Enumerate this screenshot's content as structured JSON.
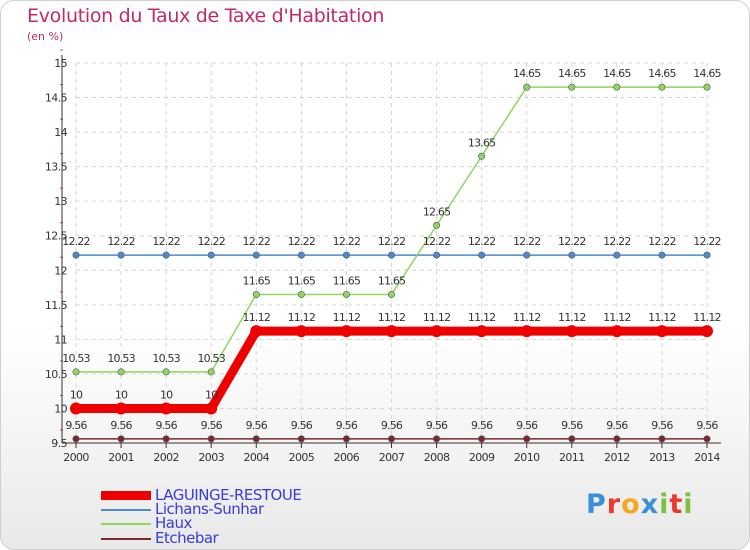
{
  "title": "Evolution du Taux de Taxe d'Habitation",
  "unit": "(en %)",
  "chart_data": {
    "type": "line",
    "x": [
      "2000",
      "2001",
      "2002",
      "2003",
      "2004",
      "2005",
      "2006",
      "2007",
      "2008",
      "2009",
      "2010",
      "2011",
      "2012",
      "2013",
      "2014"
    ],
    "ylim": [
      9.5,
      15
    ],
    "yticks": [
      "9.5",
      "10",
      "10.5",
      "11",
      "11.5",
      "12",
      "12.5",
      "13",
      "13.5",
      "14",
      "14.5",
      "15"
    ],
    "grid": true,
    "legend_position": "bottom-left",
    "series": [
      {
        "name": "LAGUINGE-RESTOUE",
        "color": "#ee0000",
        "width": 9,
        "values": [
          10,
          10,
          10,
          10,
          11.12,
          11.12,
          11.12,
          11.12,
          11.12,
          11.12,
          11.12,
          11.12,
          11.12,
          11.12,
          11.12
        ],
        "labels": [
          "10",
          "10",
          "10",
          "10",
          "11.12",
          "11.12",
          "11.12",
          "11.12",
          "11.12",
          "11.12",
          "11.12",
          "11.12",
          "11.12",
          "11.12",
          "11.12"
        ]
      },
      {
        "name": "Lichans-Sunhar",
        "color": "#4c8cc9",
        "width": 1.5,
        "values": [
          12.22,
          12.22,
          12.22,
          12.22,
          12.22,
          12.22,
          12.22,
          12.22,
          12.22,
          12.22,
          12.22,
          12.22,
          12.22,
          12.22,
          12.22
        ],
        "labels": [
          "12.22",
          "12.22",
          "12.22",
          "12.22",
          "12.22",
          "12.22",
          "12.22",
          "12.22",
          "12.22",
          "12.22",
          "12.22",
          "12.22",
          "12.22",
          "12.22",
          "12.22"
        ]
      },
      {
        "name": "Haux",
        "color": "#8fd660",
        "width": 1.5,
        "values": [
          10.53,
          10.53,
          10.53,
          10.53,
          11.65,
          11.65,
          11.65,
          11.65,
          12.65,
          13.65,
          14.65,
          14.65,
          14.65,
          14.65,
          14.65
        ],
        "labels": [
          "10.53",
          "10.53",
          "10.53",
          "10.53",
          "11.65",
          "11.65",
          "11.65",
          "11.65",
          "12.65",
          "13.65",
          "14.65",
          "14.65",
          "14.65",
          "14.65",
          "14.65"
        ]
      },
      {
        "name": "Etchebar",
        "color": "#7a2a2a",
        "width": 1.5,
        "values": [
          9.56,
          9.56,
          9.56,
          9.56,
          9.56,
          9.56,
          9.56,
          9.56,
          9.56,
          9.56,
          9.56,
          9.56,
          9.56,
          9.56,
          9.56
        ],
        "labels": [
          "9.56",
          "9.56",
          "9.56",
          "9.56",
          "9.56",
          "9.56",
          "9.56",
          "9.56",
          "9.56",
          "9.56",
          "9.56",
          "9.56",
          "9.56",
          "9.56",
          "9.56"
        ]
      }
    ]
  },
  "legend": [
    {
      "label": "LAGUINGE-RESTOUE",
      "color": "#ee0000"
    },
    {
      "label": "Lichans-Sunhar",
      "color": "#4c8cc9"
    },
    {
      "label": "Haux",
      "color": "#8fd660"
    },
    {
      "label": "Etchebar",
      "color": "#7a2a2a"
    }
  ],
  "logo": {
    "text": "Proxiti",
    "letters": [
      "P",
      "r",
      "o",
      "x",
      "i",
      "t",
      "i"
    ],
    "colors": [
      "#3a8fd6",
      "#e83a2e",
      "#f5a623",
      "#3a8fd6",
      "#7cc242",
      "#e83a2e",
      "#7cc242"
    ]
  }
}
